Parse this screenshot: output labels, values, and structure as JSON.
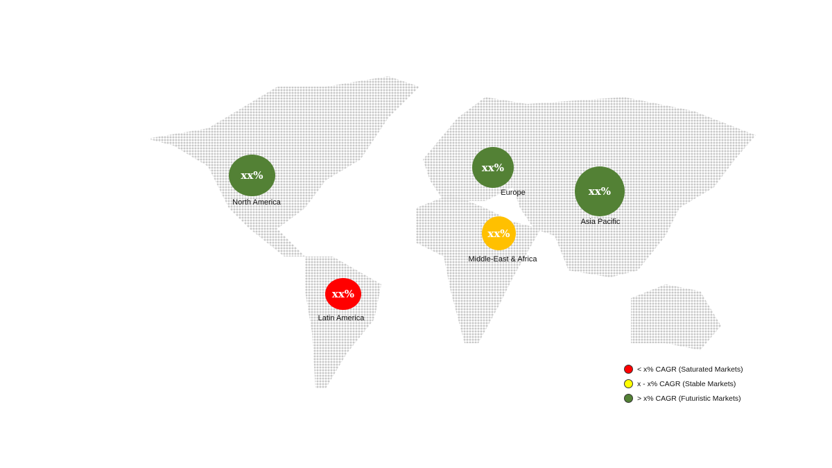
{
  "regions": [
    {
      "name": "North America",
      "value": "xx%",
      "color": "#538135"
    },
    {
      "name": "Europe",
      "value": "xx%",
      "color": "#538135"
    },
    {
      "name": "Asia Pacific",
      "value": "xx%",
      "color": "#538135"
    },
    {
      "name": "Middle-East & Africa",
      "value": "xx%",
      "color": "#FFC000"
    },
    {
      "name": "Latin America",
      "value": "xx%",
      "color": "#FF0000"
    }
  ],
  "legend": [
    {
      "label": "< x% CAGR (Saturated Markets)",
      "color": "#FF0000"
    },
    {
      "label": "x - x% CAGR (Stable Markets)",
      "color": "#FFFF00"
    },
    {
      "label": "> x% CAGR (Futuristic Markets)",
      "color": "#538135"
    }
  ],
  "map_dot_color": "#c8c8c8"
}
